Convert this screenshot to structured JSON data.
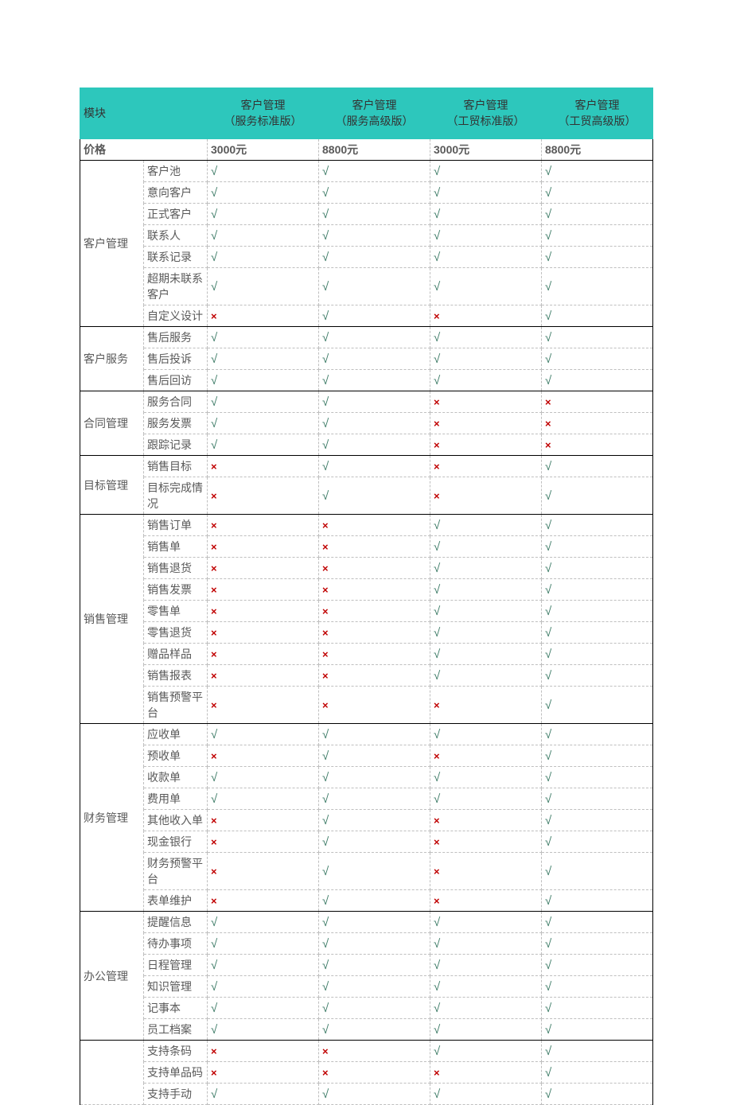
{
  "colors": {
    "header_bg": "#2dc7bc",
    "check_color": "#3b7a65",
    "cross_color": "#c00000",
    "dashed_border": "#bfbfbf",
    "solid_border": "#000000",
    "text_color": "#595959"
  },
  "symbols": {
    "check": "√",
    "cross": "×"
  },
  "header": {
    "module_label": "模块",
    "editions": [
      {
        "line1": "客户管理",
        "line2": "（服务标准版）"
      },
      {
        "line1": "客户管理",
        "line2": "（服务高级版）"
      },
      {
        "line1": "客户管理",
        "line2": "（工贸标准版）"
      },
      {
        "line1": "客户管理",
        "line2": "（工贸高级版）"
      }
    ]
  },
  "price_row": {
    "label": "价格",
    "values": [
      "3000元",
      "8800元",
      "3000元",
      "8800元"
    ]
  },
  "groups": [
    {
      "name": "客户管理",
      "rows": [
        {
          "feature": "客户池",
          "v": [
            1,
            1,
            1,
            1
          ]
        },
        {
          "feature": "意向客户",
          "v": [
            1,
            1,
            1,
            1
          ]
        },
        {
          "feature": "正式客户",
          "v": [
            1,
            1,
            1,
            1
          ]
        },
        {
          "feature": "联系人",
          "v": [
            1,
            1,
            1,
            1
          ]
        },
        {
          "feature": "联系记录",
          "v": [
            1,
            1,
            1,
            1
          ]
        },
        {
          "feature": "超期未联系客户",
          "v": [
            1,
            1,
            1,
            1
          ]
        },
        {
          "feature": "自定义设计",
          "v": [
            0,
            1,
            0,
            1
          ]
        }
      ]
    },
    {
      "name": "客户服务",
      "rows": [
        {
          "feature": "售后服务",
          "v": [
            1,
            1,
            1,
            1
          ]
        },
        {
          "feature": "售后投诉",
          "v": [
            1,
            1,
            1,
            1
          ]
        },
        {
          "feature": "售后回访",
          "v": [
            1,
            1,
            1,
            1
          ]
        }
      ]
    },
    {
      "name": "合同管理",
      "rows": [
        {
          "feature": "服务合同",
          "v": [
            1,
            1,
            0,
            0
          ]
        },
        {
          "feature": "服务发票",
          "v": [
            1,
            1,
            0,
            0
          ]
        },
        {
          "feature": "跟踪记录",
          "v": [
            1,
            1,
            0,
            0
          ]
        }
      ]
    },
    {
      "name": "目标管理",
      "rows": [
        {
          "feature": "销售目标",
          "v": [
            0,
            1,
            0,
            1
          ]
        },
        {
          "feature": "目标完成情况",
          "v": [
            0,
            1,
            0,
            1
          ]
        }
      ]
    },
    {
      "name": "销售管理",
      "rows": [
        {
          "feature": "销售订单",
          "v": [
            0,
            0,
            1,
            1
          ]
        },
        {
          "feature": "销售单",
          "v": [
            0,
            0,
            1,
            1
          ]
        },
        {
          "feature": "销售退货",
          "v": [
            0,
            0,
            1,
            1
          ]
        },
        {
          "feature": "销售发票",
          "v": [
            0,
            0,
            1,
            1
          ]
        },
        {
          "feature": "零售单",
          "v": [
            0,
            0,
            1,
            1
          ]
        },
        {
          "feature": "零售退货",
          "v": [
            0,
            0,
            1,
            1
          ]
        },
        {
          "feature": "赠品样品",
          "v": [
            0,
            0,
            1,
            1
          ]
        },
        {
          "feature": "销售报表",
          "v": [
            0,
            0,
            1,
            1
          ]
        },
        {
          "feature": "销售预警平台",
          "v": [
            0,
            0,
            0,
            1
          ]
        }
      ]
    },
    {
      "name": "财务管理",
      "rows": [
        {
          "feature": "应收单",
          "v": [
            1,
            1,
            1,
            1
          ]
        },
        {
          "feature": "预收单",
          "v": [
            0,
            1,
            0,
            1
          ]
        },
        {
          "feature": "收款单",
          "v": [
            1,
            1,
            1,
            1
          ]
        },
        {
          "feature": "费用单",
          "v": [
            1,
            1,
            1,
            1
          ]
        },
        {
          "feature": "其他收入单",
          "v": [
            0,
            1,
            0,
            1
          ]
        },
        {
          "feature": "现金银行",
          "v": [
            0,
            1,
            0,
            1
          ]
        },
        {
          "feature": "财务预警平台",
          "v": [
            0,
            1,
            0,
            1
          ]
        },
        {
          "feature": "表单维护",
          "v": [
            0,
            1,
            0,
            1
          ]
        }
      ]
    },
    {
      "name": "办公管理",
      "rows": [
        {
          "feature": "提醒信息",
          "v": [
            1,
            1,
            1,
            1
          ]
        },
        {
          "feature": "待办事项",
          "v": [
            1,
            1,
            1,
            1
          ]
        },
        {
          "feature": "日程管理",
          "v": [
            1,
            1,
            1,
            1
          ]
        },
        {
          "feature": "知识管理",
          "v": [
            1,
            1,
            1,
            1
          ]
        },
        {
          "feature": "记事本",
          "v": [
            1,
            1,
            1,
            1
          ]
        },
        {
          "feature": "员工档案",
          "v": [
            1,
            1,
            1,
            1
          ]
        }
      ]
    },
    {
      "name": "",
      "rows": [
        {
          "feature": "支持条码",
          "v": [
            0,
            0,
            1,
            1
          ]
        },
        {
          "feature": "支持单品码",
          "v": [
            0,
            0,
            0,
            1
          ]
        },
        {
          "feature": "支持手动",
          "v": [
            1,
            1,
            1,
            1
          ],
          "partial": true
        }
      ]
    }
  ]
}
